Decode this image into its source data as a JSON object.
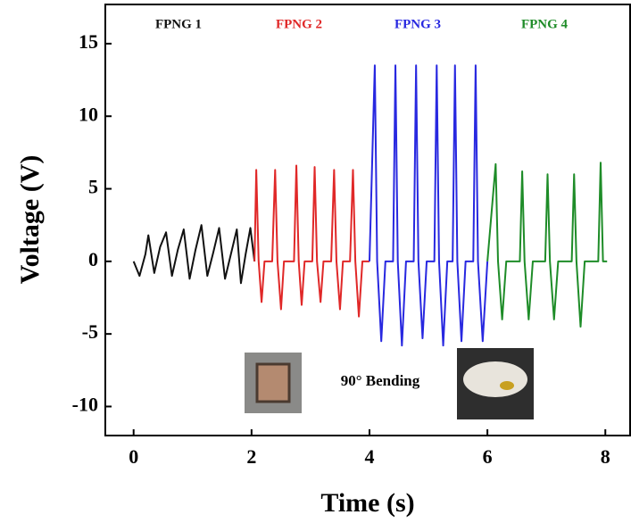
{
  "chart_data": {
    "type": "line",
    "x_label": "Time (s)",
    "y_label": "Voltage (V)",
    "annotation": "90° Bending",
    "xlim": [
      -0.48,
      8.42
    ],
    "ylim": [
      -12,
      17.7
    ],
    "xticks": [
      0,
      2,
      4,
      6,
      8
    ],
    "yticks": [
      -10,
      -5,
      0,
      5,
      10,
      15
    ],
    "series": [
      {
        "name": "FPNG 1",
        "color": "#111111",
        "x": [
          0,
          0.1,
          0.2,
          0.25,
          0.35,
          0.45,
          0.55,
          0.65,
          0.75,
          0.85,
          0.95,
          1.05,
          1.15,
          1.25,
          1.35,
          1.45,
          1.55,
          1.65,
          1.75,
          1.82,
          1.9,
          1.98,
          2.05
        ],
        "values": [
          0,
          -1,
          0.5,
          1.8,
          -0.8,
          1,
          2,
          -1,
          0.8,
          2.2,
          -1.2,
          0.8,
          2.5,
          -1,
          0.6,
          2.3,
          -1.2,
          0.5,
          2.2,
          -1.5,
          0.5,
          2.3,
          0
        ]
      },
      {
        "name": "FPNG 2",
        "color": "#e02828",
        "x": [
          2.05,
          2.08,
          2.12,
          2.17,
          2.22,
          2.35,
          2.4,
          2.44,
          2.5,
          2.55,
          2.72,
          2.76,
          2.8,
          2.85,
          2.9,
          3.03,
          3.07,
          3.11,
          3.17,
          3.22,
          3.35,
          3.4,
          3.44,
          3.5,
          3.55,
          3.67,
          3.72,
          3.76,
          3.82,
          3.88,
          4.0
        ],
        "values": [
          0,
          6.3,
          0,
          -2.8,
          0,
          0,
          6.3,
          0,
          -3.3,
          0,
          0,
          6.6,
          0,
          -3,
          0,
          0,
          6.5,
          0,
          -2.8,
          0,
          0,
          6.3,
          0,
          -3.3,
          0,
          0,
          6.3,
          0,
          -3.8,
          0,
          0
        ]
      },
      {
        "name": "FPNG 3",
        "color": "#2828e0",
        "x": [
          4.0,
          4.09,
          4.13,
          4.2,
          4.27,
          4.4,
          4.44,
          4.48,
          4.55,
          4.62,
          4.75,
          4.79,
          4.83,
          4.9,
          4.97,
          5.1,
          5.14,
          5.18,
          5.25,
          5.32,
          5.41,
          5.45,
          5.49,
          5.56,
          5.63,
          5.76,
          5.8,
          5.84,
          5.92,
          6.0
        ],
        "values": [
          0,
          13.5,
          0,
          -5.5,
          0,
          0,
          13.5,
          0,
          -5.8,
          0,
          0,
          13.5,
          0,
          -5.3,
          0,
          0,
          13.5,
          0,
          -5.8,
          0,
          0,
          13.5,
          0,
          -5.5,
          0,
          0,
          13.5,
          0,
          -5.5,
          0
        ]
      },
      {
        "name": "FPNG 4",
        "color": "#1e8c28",
        "x": [
          6.0,
          6.14,
          6.18,
          6.25,
          6.32,
          6.55,
          6.59,
          6.63,
          6.7,
          6.77,
          6.98,
          7.02,
          7.06,
          7.13,
          7.2,
          7.43,
          7.47,
          7.51,
          7.58,
          7.65,
          7.88,
          7.92,
          7.96,
          8.03
        ],
        "values": [
          0,
          6.7,
          0,
          -4,
          0,
          0,
          6.2,
          0,
          -4,
          0,
          0,
          6,
          0,
          -4,
          0,
          0,
          6,
          0,
          -4.5,
          0,
          0,
          6.8,
          0,
          0
        ]
      }
    ]
  }
}
